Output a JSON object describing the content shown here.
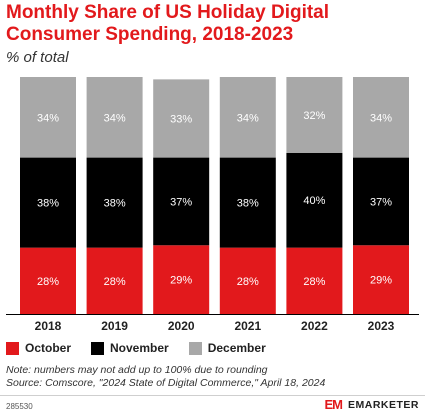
{
  "header": {
    "title": "Monthly Share of US Holiday Digital Consumer Spending, 2018-2023",
    "subtitle": "% of total"
  },
  "colors": {
    "October": "#e2191c",
    "November": "#000000",
    "December": "#a8a8a8"
  },
  "chart_data": {
    "type": "bar",
    "stacked": true,
    "categories": [
      "2018",
      "2019",
      "2020",
      "2021",
      "2022",
      "2023"
    ],
    "series": [
      {
        "name": "October",
        "values": [
          28,
          28,
          29,
          28,
          28,
          29
        ]
      },
      {
        "name": "November",
        "values": [
          38,
          38,
          37,
          38,
          40,
          37
        ]
      },
      {
        "name": "December",
        "values": [
          34,
          34,
          33,
          34,
          32,
          34
        ]
      }
    ],
    "value_suffix": "%",
    "legend_position": "bottom-left",
    "grid": false
  },
  "footer": {
    "note": "Note: numbers may not add up to 100% due to rounding",
    "source": "Source: Comscore, \"2024 State of Digital Commerce,\" April 18, 2024",
    "chart_id": "285530",
    "brand_logo": "EM",
    "brand_name": "EMARKETER"
  }
}
